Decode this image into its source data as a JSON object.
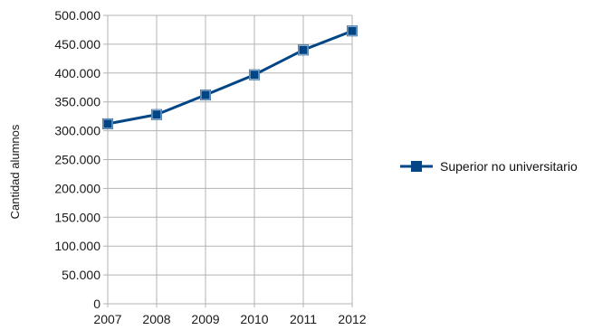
{
  "chart_data": {
    "type": "line",
    "title": "",
    "xlabel": "",
    "ylabel": "Cantidad alumnos",
    "categories": [
      "2007",
      "2008",
      "2009",
      "2010",
      "2011",
      "2012"
    ],
    "series": [
      {
        "name": "Superior no universitario",
        "values": [
          312000,
          328000,
          362000,
          397000,
          440000,
          473000
        ]
      }
    ],
    "ylim": [
      0,
      500000
    ],
    "yticks": [
      0,
      50000,
      100000,
      150000,
      200000,
      250000,
      300000,
      350000,
      400000,
      450000,
      500000
    ],
    "ytick_labels": [
      "0",
      "50.000",
      "100.000",
      "150.000",
      "200.000",
      "250.000",
      "300.000",
      "350.000",
      "400.000",
      "450.000",
      "500.000"
    ],
    "grid": true,
    "legend_position": "right",
    "colors": {
      "series": "#004586",
      "marker_highlight": "#b3c7de",
      "grid": "#b3b3b3"
    }
  }
}
